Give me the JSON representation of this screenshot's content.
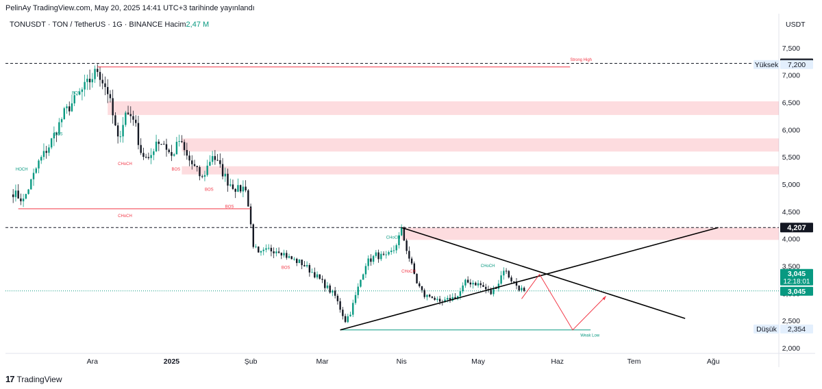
{
  "header": {
    "published": "PelinAy TradingView.com, May 20, 2025 14:41 UTC+3 tarihinde yayınlandı",
    "symbol": "TONUSDT · TON / TetherUS · 1G · BINANCE",
    "volume_label": "Hacim",
    "volume_value": "2,47 M"
  },
  "footer": {
    "brand": "TradingView",
    "logo": "17"
  },
  "colors": {
    "up": "#089981",
    "down": "#131722",
    "zone": "#f7525f",
    "accent": "#089981"
  },
  "chart_data": {
    "type": "candlestick",
    "currency_label": "USDT",
    "y_axis": {
      "range": [
        1900,
        7800
      ],
      "ticks": [
        2000,
        2500,
        3000,
        3500,
        4000,
        4500,
        5000,
        5500,
        6000,
        6500,
        7000,
        7500
      ],
      "tick_labels": [
        "2,000",
        "2,500",
        "3,000",
        "3,500",
        "4,000",
        "4,500",
        "5,000",
        "5,500",
        "6,000",
        "6,500",
        "7,000",
        "7,500"
      ]
    },
    "x_axis": {
      "labels": [
        {
          "label": "Ara",
          "bold": false
        },
        {
          "label": "2025",
          "bold": true
        },
        {
          "label": "Şub",
          "bold": false
        },
        {
          "label": "Mar",
          "bold": false
        },
        {
          "label": "Nis",
          "bold": false
        },
        {
          "label": "May",
          "bold": false
        },
        {
          "label": "Haz",
          "bold": false
        },
        {
          "label": "Tem",
          "bold": false
        },
        {
          "label": "Ağu",
          "bold": false
        }
      ],
      "label_days": [
        31,
        62,
        93,
        121,
        152,
        182,
        213,
        243,
        274
      ]
    },
    "price_tags": [
      {
        "value": 7216,
        "text": "7,216",
        "style": "black"
      },
      {
        "value": 7200,
        "text": "7,200",
        "style": "light",
        "label": "Yüksek"
      },
      {
        "value": 4207,
        "text": "4,207",
        "style": "black"
      },
      {
        "value": 3045,
        "text": "3,045",
        "style": "green",
        "timer": "12:18:01"
      },
      {
        "value": 2354,
        "text": "2,354",
        "style": "light",
        "label": "Düşük"
      }
    ],
    "anchors": [
      {
        "day": 0,
        "close": 4850
      },
      {
        "day": 4,
        "close": 4700
      },
      {
        "day": 10,
        "close": 5400
      },
      {
        "day": 14,
        "close": 5700
      },
      {
        "day": 20,
        "close": 6300
      },
      {
        "day": 25,
        "close": 6600
      },
      {
        "day": 30,
        "close": 6900
      },
      {
        "day": 33,
        "close": 7100
      },
      {
        "day": 37,
        "close": 6700
      },
      {
        "day": 41,
        "close": 5800
      },
      {
        "day": 44,
        "close": 6300
      },
      {
        "day": 47,
        "close": 6250
      },
      {
        "day": 50,
        "close": 5600
      },
      {
        "day": 53,
        "close": 5400
      },
      {
        "day": 56,
        "close": 5800
      },
      {
        "day": 59,
        "close": 5750
      },
      {
        "day": 62,
        "close": 5500
      },
      {
        "day": 65,
        "close": 5800
      },
      {
        "day": 68,
        "close": 5500
      },
      {
        "day": 71,
        "close": 5300
      },
      {
        "day": 74,
        "close": 5100
      },
      {
        "day": 78,
        "close": 5550
      },
      {
        "day": 81,
        "close": 5300
      },
      {
        "day": 84,
        "close": 5050
      },
      {
        "day": 88,
        "close": 4900
      },
      {
        "day": 91,
        "close": 4950
      },
      {
        "day": 94,
        "close": 3900
      },
      {
        "day": 96,
        "close": 3700
      },
      {
        "day": 100,
        "close": 3800
      },
      {
        "day": 104,
        "close": 3800
      },
      {
        "day": 108,
        "close": 3650
      },
      {
        "day": 113,
        "close": 3550
      },
      {
        "day": 118,
        "close": 3350
      },
      {
        "day": 122,
        "close": 3150
      },
      {
        "day": 126,
        "close": 2950
      },
      {
        "day": 130,
        "close": 2500
      },
      {
        "day": 132,
        "close": 2650
      },
      {
        "day": 135,
        "close": 3100
      },
      {
        "day": 138,
        "close": 3550
      },
      {
        "day": 142,
        "close": 3700
      },
      {
        "day": 146,
        "close": 3650
      },
      {
        "day": 149,
        "close": 3800
      },
      {
        "day": 152,
        "close": 4150
      },
      {
        "day": 155,
        "close": 3650
      },
      {
        "day": 158,
        "close": 3200
      },
      {
        "day": 161,
        "close": 2950
      },
      {
        "day": 164,
        "close": 2950
      },
      {
        "day": 167,
        "close": 2800
      },
      {
        "day": 171,
        "close": 2900
      },
      {
        "day": 174,
        "close": 2950
      },
      {
        "day": 177,
        "close": 3200
      },
      {
        "day": 180,
        "close": 3200
      },
      {
        "day": 183,
        "close": 3150
      },
      {
        "day": 187,
        "close": 3000
      },
      {
        "day": 190,
        "close": 3200
      },
      {
        "day": 192,
        "close": 3450
      },
      {
        "day": 195,
        "close": 3250
      },
      {
        "day": 198,
        "close": 3100
      },
      {
        "day": 200,
        "close": 3045
      }
    ],
    "zones": [
      {
        "from_day": 37,
        "to_day": 300,
        "low": 6270,
        "high": 6520
      },
      {
        "from_day": 66,
        "to_day": 300,
        "low": 5600,
        "high": 5840
      },
      {
        "from_day": 66,
        "to_day": 300,
        "low": 5180,
        "high": 5330
      },
      {
        "from_day": 152,
        "to_day": 300,
        "low": 3980,
        "high": 4207
      }
    ],
    "levels": [
      {
        "value": 7216,
        "style": "dashed",
        "label": ""
      },
      {
        "value": 4207,
        "style": "dashed",
        "label": ""
      }
    ],
    "lines": [
      {
        "from": [
          33,
          7150
        ],
        "to": [
          218,
          7150
        ],
        "color": "red",
        "label": "Strong High"
      },
      {
        "from": [
          128,
          2330
        ],
        "to": [
          226,
          2330
        ],
        "color": "green",
        "label": "Weak Low"
      },
      {
        "from": [
          -30,
          5000
        ],
        "to": [
          -10,
          4700
        ],
        "color": "red",
        "label": "CHoCH"
      },
      {
        "from": [
          2,
          4550
        ],
        "to": [
          93,
          4550
        ],
        "color": "red",
        "label": "CHoCH"
      }
    ],
    "trendlines": [
      {
        "from": [
          128,
          2330
        ],
        "to": [
          276,
          4207
        ]
      },
      {
        "from": [
          152,
          4207
        ],
        "to": [
          263,
          2540
        ]
      }
    ],
    "projection": [
      [
        199,
        2900
      ],
      [
        206,
        3350
      ],
      [
        219,
        2330
      ],
      [
        232,
        2950
      ]
    ],
    "annotations": [
      {
        "text": "BOS",
        "day": 23,
        "value": 6650,
        "color": "green"
      },
      {
        "text": "BOS",
        "day": 16,
        "value": 5900,
        "color": "green"
      },
      {
        "text": "HOCH",
        "day": 1,
        "value": 5250,
        "color": "green"
      },
      {
        "text": "CHoCH",
        "day": 41,
        "value": 5350,
        "color": "red"
      },
      {
        "text": "BOS",
        "day": 62,
        "value": 5250,
        "color": "red"
      },
      {
        "text": "BOS",
        "day": 75,
        "value": 4880,
        "color": "red"
      },
      {
        "text": "BOS",
        "day": 83,
        "value": 4570,
        "color": "red"
      },
      {
        "text": "CHoCH",
        "day": 41,
        "value": 4400,
        "color": "red"
      },
      {
        "text": "BOS",
        "day": 105,
        "value": 3450,
        "color": "red"
      },
      {
        "text": "CHoCH",
        "day": 146,
        "value": 4000,
        "color": "green"
      },
      {
        "text": "CHoCH",
        "day": 152,
        "value": 3380,
        "color": "red"
      },
      {
        "text": "CHoCH",
        "day": 183,
        "value": 3480,
        "color": "green"
      },
      {
        "text": "Strong High",
        "day": 218,
        "value": 7260,
        "color": "red"
      },
      {
        "text": "Weak Low",
        "day": 222,
        "value": 2210,
        "color": "green"
      }
    ]
  }
}
